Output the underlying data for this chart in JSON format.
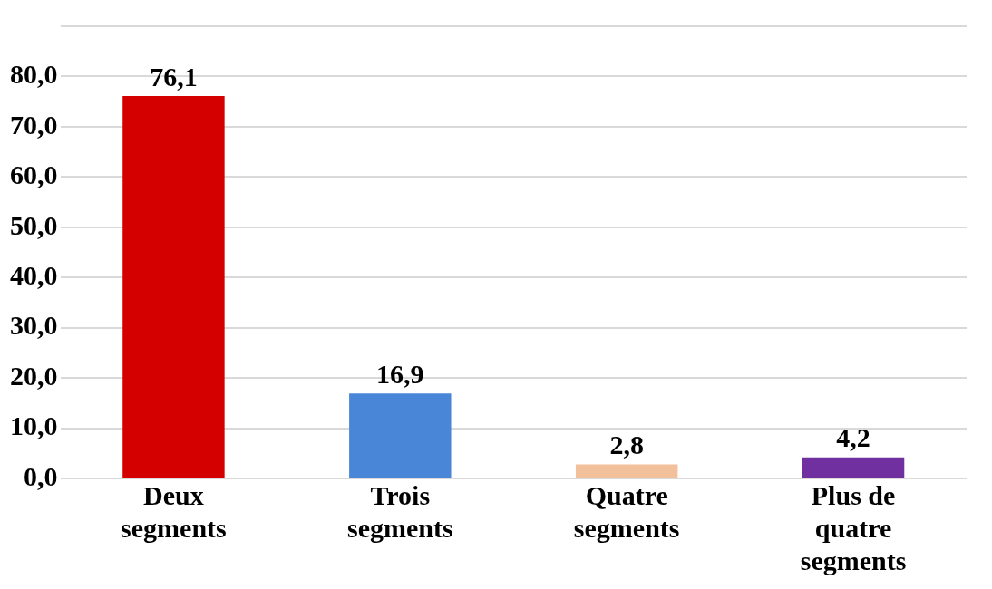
{
  "chart_data": {
    "type": "bar",
    "categories": [
      "Deux segments",
      "Trois segments",
      "Quatre segments",
      "Plus de quatre segments"
    ],
    "values": [
      76.1,
      16.9,
      2.8,
      4.2
    ],
    "colors": [
      "#d40000",
      "#4a86d8",
      "#f2c09a",
      "#7030a0"
    ],
    "value_labels": [
      "76,1",
      "16,9",
      "2,8",
      "4,2"
    ],
    "ylim": [
      0,
      90
    ],
    "yticks": [
      {
        "value": 0,
        "label": "0,0"
      },
      {
        "value": 10,
        "label": "10,0"
      },
      {
        "value": 20,
        "label": "20,0"
      },
      {
        "value": 30,
        "label": "30,0"
      },
      {
        "value": 40,
        "label": "40,0"
      },
      {
        "value": 50,
        "label": "50,0"
      },
      {
        "value": 60,
        "label": "60,0"
      },
      {
        "value": 70,
        "label": "70,0"
      },
      {
        "value": 80,
        "label": "80,0"
      },
      {
        "value": 90,
        "label": null
      }
    ],
    "grid": "y",
    "legend": false
  }
}
